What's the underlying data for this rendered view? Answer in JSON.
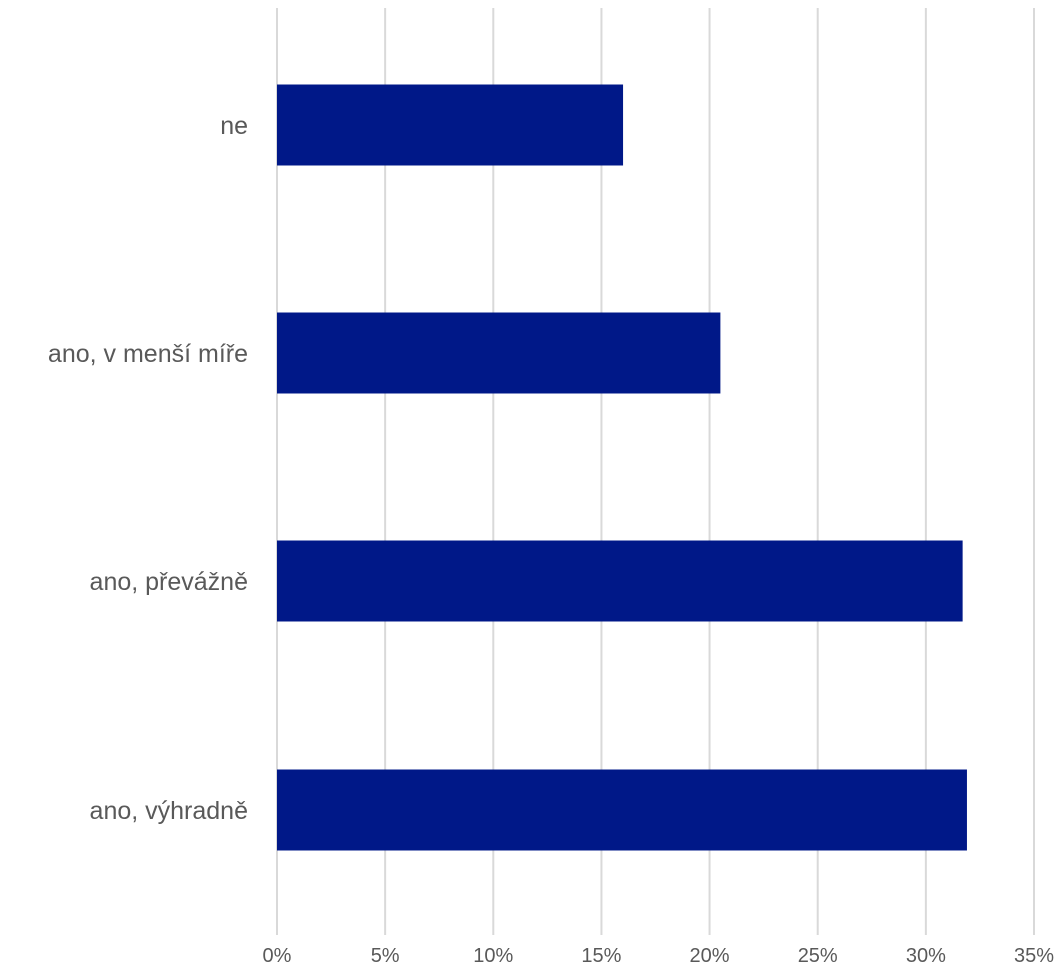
{
  "chart_data": {
    "type": "bar",
    "orientation": "horizontal",
    "title": "",
    "xlabel": "",
    "ylabel": "",
    "categories": [
      "ne",
      "ano, v menší míře",
      "ano, převážně",
      "ano, výhradně"
    ],
    "series": [
      {
        "values": [
          0.16,
          0.205,
          0.317,
          0.319
        ]
      }
    ],
    "xlim": [
      0,
      0.35
    ],
    "x_ticks": [
      0,
      0.05,
      0.1,
      0.15,
      0.2,
      0.25,
      0.3,
      0.35
    ],
    "x_tick_labels": [
      "0%",
      "5%",
      "10%",
      "15%",
      "20%",
      "25%",
      "30%",
      "35%"
    ],
    "gridlines": "vertical",
    "legend": "none",
    "colors": {
      "bar": "#001888",
      "grid": "#d9d9d9",
      "text": "#595959"
    }
  }
}
